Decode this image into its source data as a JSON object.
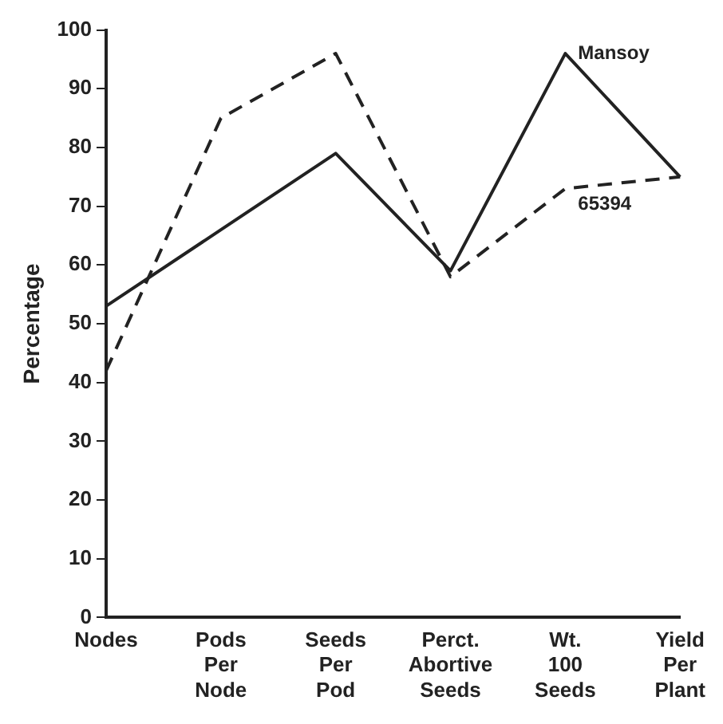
{
  "chart_data": {
    "type": "line",
    "ylabel": "Percentage",
    "categories": [
      "Nodes",
      "Pods Per Node",
      "Seeds Per Pod",
      "Perct. Abortive Seeds",
      "Wt. 100 Seeds",
      "Yield Per Plant"
    ],
    "series": [
      {
        "name": "Mansoy",
        "color": "#222222",
        "line_style": "solid",
        "values": [
          53,
          66,
          79,
          59,
          96,
          75
        ]
      },
      {
        "name": "65394",
        "color": "#222222",
        "line_style": "dashed",
        "values": [
          42,
          85,
          96,
          58,
          73,
          75
        ]
      }
    ],
    "ylim": [
      0,
      100
    ],
    "yticks": [
      0,
      10,
      20,
      30,
      40,
      50,
      60,
      70,
      80,
      90,
      100
    ],
    "grid": false,
    "legend": false,
    "marker": "none"
  }
}
